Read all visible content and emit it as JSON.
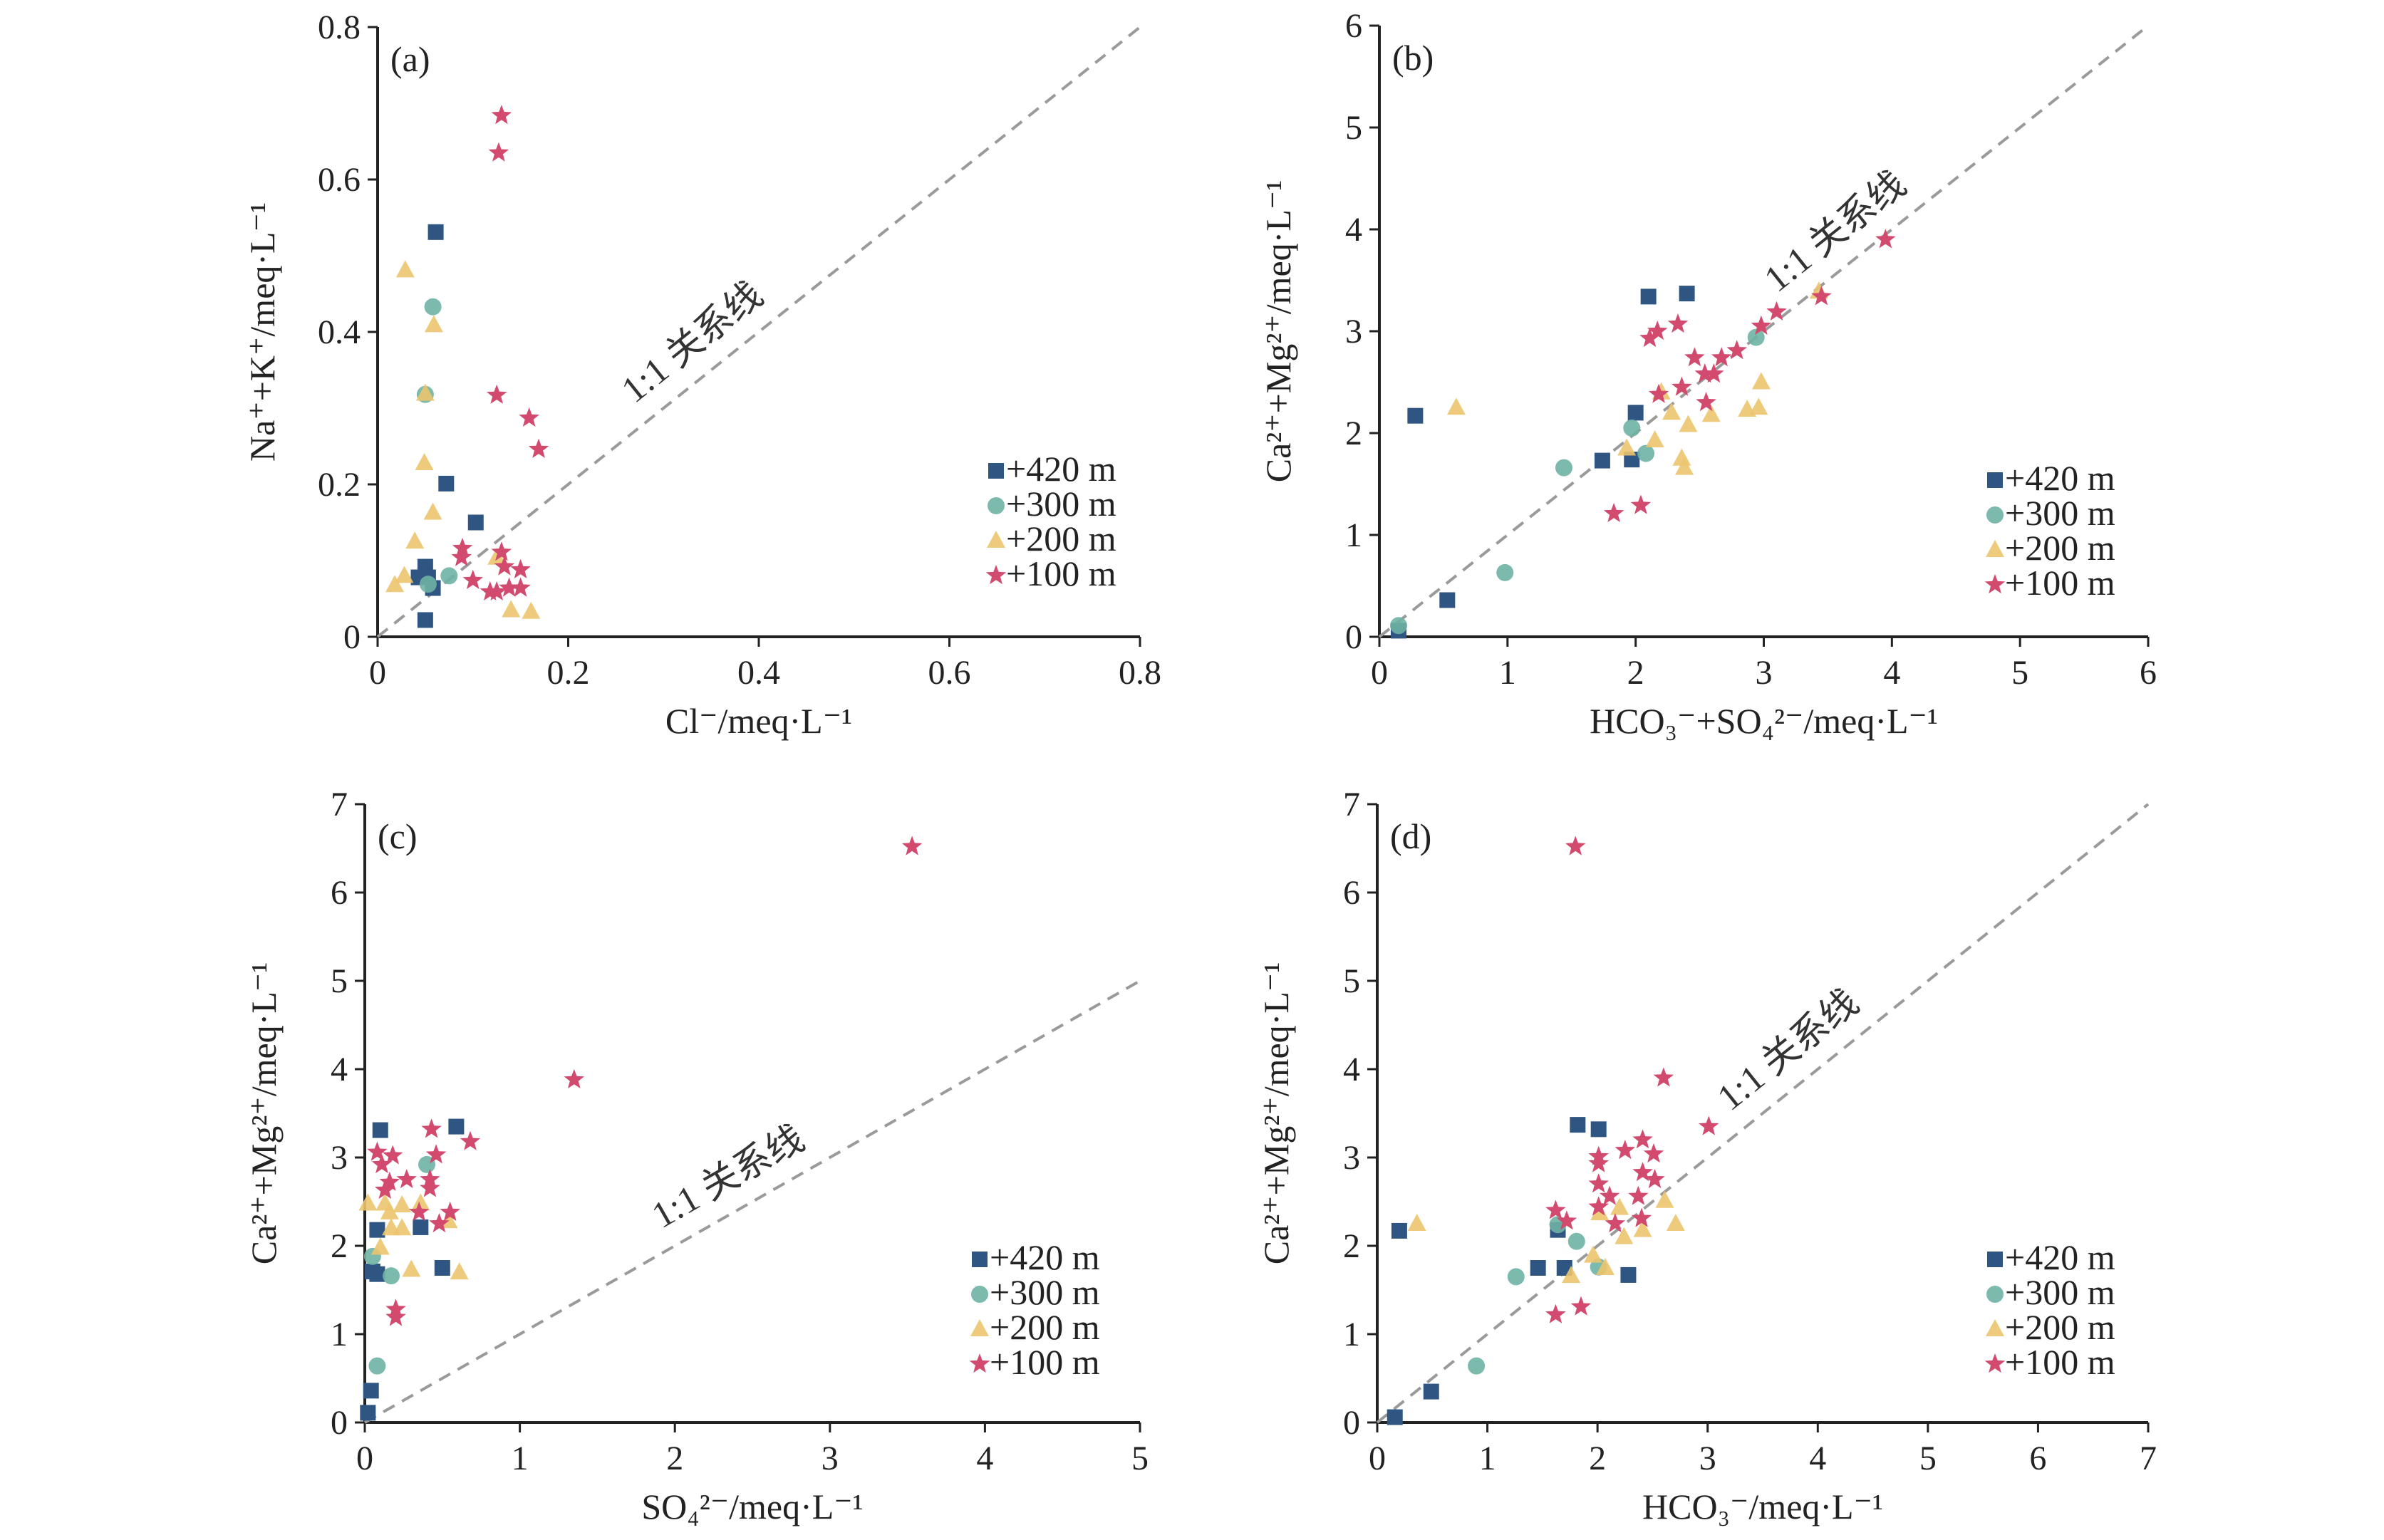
{
  "colors": {
    "+420 m": "#2f5582",
    "+300 m": "#6eb3a4",
    "+200 m": "#ecc46e",
    "+100 m": "#d24a6e",
    "one_to_one_line": "#9a9a9a"
  },
  "markers": {
    "+420 m": "square",
    "+300 m": "circle",
    "+200 m": "triangle",
    "+100 m": "star"
  },
  "chart_data": [
    {
      "type": "scatter",
      "panel_label": "(a)",
      "xlabel": "Cl⁻/meq·L⁻¹",
      "ylabel": "Na⁺+K⁺/meq·L⁻¹",
      "xlim": [
        0,
        0.8
      ],
      "ylim": [
        0,
        0.8
      ],
      "xticks": [
        "0",
        "0.2",
        "0.4",
        "0.6",
        "0.8"
      ],
      "yticks": [
        "0",
        "0.2",
        "0.4",
        "0.6",
        "0.8"
      ],
      "xtick_values": [
        0,
        0.2,
        0.4,
        0.6,
        0.8
      ],
      "ytick_values": [
        0,
        0.2,
        0.4,
        0.6,
        0.8
      ],
      "grid": false,
      "legend_placement": "lower-right",
      "reference_line": {
        "label": "1:1 关系线",
        "x": [
          0,
          0.8
        ],
        "y": [
          0,
          0.8
        ]
      },
      "series": [
        {
          "name": "+420 m",
          "points": [
            [
              0.061,
              0.531
            ],
            [
              0.072,
              0.201
            ],
            [
              0.103,
              0.15
            ],
            [
              0.05,
              0.092
            ],
            [
              0.043,
              0.078
            ],
            [
              0.058,
              0.064
            ],
            [
              0.05,
              0.022
            ],
            [
              0.053,
              0.078
            ]
          ]
        },
        {
          "name": "+300 m",
          "points": [
            [
              0.058,
              0.433
            ],
            [
              0.05,
              0.318
            ],
            [
              0.075,
              0.08
            ],
            [
              0.053,
              0.069
            ]
          ]
        },
        {
          "name": "+200 m",
          "points": [
            [
              0.029,
              0.481
            ],
            [
              0.059,
              0.409
            ],
            [
              0.05,
              0.319
            ],
            [
              0.049,
              0.228
            ],
            [
              0.058,
              0.163
            ],
            [
              0.039,
              0.125
            ],
            [
              0.028,
              0.08
            ],
            [
              0.018,
              0.068
            ],
            [
              0.14,
              0.035
            ],
            [
              0.161,
              0.033
            ],
            [
              0.125,
              0.104
            ]
          ]
        },
        {
          "name": "+100 m",
          "points": [
            [
              0.13,
              0.684
            ],
            [
              0.127,
              0.635
            ],
            [
              0.125,
              0.317
            ],
            [
              0.159,
              0.287
            ],
            [
              0.169,
              0.246
            ],
            [
              0.089,
              0.116
            ],
            [
              0.088,
              0.104
            ],
            [
              0.1,
              0.074
            ],
            [
              0.13,
              0.111
            ],
            [
              0.133,
              0.092
            ],
            [
              0.15,
              0.088
            ],
            [
              0.125,
              0.059
            ],
            [
              0.138,
              0.064
            ],
            [
              0.15,
              0.064
            ],
            [
              0.118,
              0.059
            ]
          ]
        }
      ]
    },
    {
      "type": "scatter",
      "panel_label": "(b)",
      "xlabel": "HCO₃⁻+SO₄²⁻/meq·L⁻¹",
      "ylabel": "Ca²⁺+Mg²⁺/meq·L⁻¹",
      "xlim": [
        0,
        6
      ],
      "ylim": [
        0,
        6
      ],
      "xticks": [
        "0",
        "1",
        "2",
        "3",
        "4",
        "5",
        "6"
      ],
      "yticks": [
        "0",
        "1",
        "2",
        "3",
        "4",
        "5",
        "6"
      ],
      "xtick_values": [
        0,
        1,
        2,
        3,
        4,
        5,
        6
      ],
      "ytick_values": [
        0,
        1,
        2,
        3,
        4,
        5,
        6
      ],
      "grid": false,
      "legend_placement": "lower-right",
      "reference_line": {
        "label": "1:1 关系线",
        "x": [
          0,
          6
        ],
        "y": [
          0,
          6
        ]
      },
      "series": [
        {
          "name": "+420 m",
          "points": [
            [
              2.1,
              3.34
            ],
            [
              2.4,
              3.37
            ],
            [
              0.28,
              2.17
            ],
            [
              2.0,
              2.2
            ],
            [
              1.74,
              1.73
            ],
            [
              1.97,
              1.74
            ],
            [
              0.53,
              0.36
            ],
            [
              0.15,
              0.06
            ]
          ]
        },
        {
          "name": "+300 m",
          "points": [
            [
              1.44,
              1.66
            ],
            [
              0.98,
              0.63
            ],
            [
              1.97,
              2.05
            ],
            [
              2.08,
              1.8
            ],
            [
              2.94,
              2.94
            ],
            [
              0.15,
              0.11
            ]
          ]
        },
        {
          "name": "+200 m",
          "points": [
            [
              0.6,
              2.25
            ],
            [
              2.98,
              2.5
            ],
            [
              2.96,
              2.25
            ],
            [
              2.87,
              2.23
            ],
            [
              2.15,
              1.93
            ],
            [
              1.93,
              1.85
            ],
            [
              2.36,
              1.75
            ],
            [
              2.38,
              1.66
            ],
            [
              2.41,
              2.08
            ],
            [
              2.28,
              2.2
            ],
            [
              2.59,
              2.18
            ],
            [
              3.43,
              3.39
            ],
            [
              2.2,
              2.4
            ]
          ]
        },
        {
          "name": "+100 m",
          "points": [
            [
              2.11,
              2.93
            ],
            [
              2.17,
              3.0
            ],
            [
              2.33,
              3.07
            ],
            [
              2.46,
              2.74
            ],
            [
              2.67,
              2.74
            ],
            [
              2.79,
              2.81
            ],
            [
              2.54,
              2.58
            ],
            [
              2.61,
              2.58
            ],
            [
              2.18,
              2.38
            ],
            [
              2.36,
              2.45
            ],
            [
              2.55,
              2.3
            ],
            [
              2.98,
              3.05
            ],
            [
              3.1,
              3.19
            ],
            [
              3.45,
              3.34
            ],
            [
              1.83,
              1.21
            ],
            [
              2.04,
              1.29
            ],
            [
              3.95,
              3.9
            ]
          ]
        }
      ]
    },
    {
      "type": "scatter",
      "panel_label": "(c)",
      "xlabel": "SO₄²⁻/meq·L⁻¹",
      "ylabel": "Ca²⁺+Mg²⁺/meq·L⁻¹",
      "xlim": [
        0,
        5
      ],
      "ylim": [
        0,
        7
      ],
      "xticks": [
        "0",
        "1",
        "2",
        "3",
        "4",
        "5"
      ],
      "yticks": [
        "0",
        "1",
        "2",
        "3",
        "4",
        "5",
        "6",
        "7"
      ],
      "xtick_values": [
        0,
        1,
        2,
        3,
        4,
        5
      ],
      "ytick_values": [
        0,
        1,
        2,
        3,
        4,
        5,
        6,
        7
      ],
      "grid": false,
      "legend_placement": "lower-right",
      "reference_line": {
        "label": "1:1 关系线",
        "x": [
          0,
          5
        ],
        "y": [
          0,
          5
        ]
      },
      "series": [
        {
          "name": "+420 m",
          "points": [
            [
              0.1,
              3.31
            ],
            [
              0.59,
              3.35
            ],
            [
              0.08,
              2.18
            ],
            [
              0.5,
              1.75
            ],
            [
              0.05,
              1.71
            ],
            [
              0.08,
              1.68
            ],
            [
              0.04,
              0.36
            ],
            [
              0.02,
              0.11
            ],
            [
              0.36,
              2.21
            ]
          ]
        },
        {
          "name": "+300 m",
          "points": [
            [
              0.4,
              2.92
            ],
            [
              0.17,
              1.66
            ],
            [
              0.08,
              0.64
            ],
            [
              0.05,
              1.88
            ]
          ]
        },
        {
          "name": "+200 m",
          "points": [
            [
              0.3,
              1.73
            ],
            [
              0.61,
              1.7
            ],
            [
              0.17,
              2.2
            ],
            [
              0.24,
              2.2
            ],
            [
              0.1,
              1.98
            ],
            [
              0.02,
              2.48
            ],
            [
              0.13,
              2.48
            ],
            [
              0.24,
              2.46
            ],
            [
              0.36,
              2.48
            ],
            [
              0.54,
              2.28
            ],
            [
              0.16,
              2.38
            ]
          ]
        },
        {
          "name": "+100 m",
          "points": [
            [
              0.43,
              3.32
            ],
            [
              0.68,
              3.18
            ],
            [
              0.08,
              3.06
            ],
            [
              0.18,
              3.02
            ],
            [
              0.46,
              3.03
            ],
            [
              0.11,
              2.92
            ],
            [
              0.27,
              2.75
            ],
            [
              0.16,
              2.72
            ],
            [
              0.42,
              2.75
            ],
            [
              0.42,
              2.65
            ],
            [
              0.13,
              2.63
            ],
            [
              0.35,
              2.38
            ],
            [
              0.55,
              2.38
            ],
            [
              0.48,
              2.25
            ],
            [
              0.2,
              1.28
            ],
            [
              0.2,
              1.19
            ],
            [
              1.35,
              3.88
            ],
            [
              3.53,
              6.52
            ]
          ]
        }
      ]
    },
    {
      "type": "scatter",
      "panel_label": "(d)",
      "xlabel": "HCO₃⁻/meq·L⁻¹",
      "ylabel": "Ca²⁺+Mg²⁺/meq·L⁻¹",
      "xlim": [
        0,
        7
      ],
      "ylim": [
        0,
        7
      ],
      "xticks": [
        "0",
        "1",
        "2",
        "3",
        "4",
        "5",
        "6",
        "7"
      ],
      "yticks": [
        "0",
        "1",
        "2",
        "3",
        "4",
        "5",
        "6",
        "7"
      ],
      "xtick_values": [
        0,
        1,
        2,
        3,
        4,
        5,
        6,
        7
      ],
      "ytick_values": [
        0,
        1,
        2,
        3,
        4,
        5,
        6,
        7
      ],
      "grid": false,
      "legend_placement": "lower-right",
      "reference_line": {
        "label": "1:1 关系线",
        "x": [
          0,
          7
        ],
        "y": [
          0,
          7
        ]
      },
      "series": [
        {
          "name": "+420 m",
          "points": [
            [
              1.82,
              3.37
            ],
            [
              2.01,
              3.32
            ],
            [
              0.2,
              2.17
            ],
            [
              1.46,
              1.75
            ],
            [
              1.7,
              1.75
            ],
            [
              1.64,
              2.18
            ],
            [
              2.28,
              1.67
            ],
            [
              0.49,
              0.35
            ],
            [
              0.16,
              0.06
            ]
          ]
        },
        {
          "name": "+300 m",
          "points": [
            [
              1.26,
              1.65
            ],
            [
              0.9,
              0.64
            ],
            [
              1.81,
              2.05
            ],
            [
              2.01,
              1.76
            ],
            [
              1.64,
              2.24
            ]
          ]
        },
        {
          "name": "+200 m",
          "points": [
            [
              0.36,
              2.25
            ],
            [
              2.71,
              2.25
            ],
            [
              1.76,
              1.66
            ],
            [
              2.07,
              1.75
            ],
            [
              1.96,
              1.89
            ],
            [
              2.24,
              2.1
            ],
            [
              2.41,
              2.18
            ],
            [
              2.61,
              2.51
            ],
            [
              2.02,
              2.37
            ],
            [
              2.2,
              2.43
            ]
          ]
        },
        {
          "name": "+100 m",
          "points": [
            [
              3.01,
              3.35
            ],
            [
              2.41,
              3.2
            ],
            [
              2.25,
              3.08
            ],
            [
              2.51,
              3.04
            ],
            [
              2.01,
              3.01
            ],
            [
              2.01,
              2.93
            ],
            [
              2.41,
              2.83
            ],
            [
              2.52,
              2.75
            ],
            [
              2.01,
              2.7
            ],
            [
              2.11,
              2.56
            ],
            [
              2.37,
              2.56
            ],
            [
              2.01,
              2.44
            ],
            [
              2.16,
              2.25
            ],
            [
              2.4,
              2.31
            ],
            [
              1.62,
              2.4
            ],
            [
              1.72,
              2.28
            ],
            [
              1.62,
              1.22
            ],
            [
              1.85,
              1.31
            ],
            [
              2.6,
              3.9
            ],
            [
              1.8,
              6.52
            ]
          ]
        }
      ]
    }
  ]
}
